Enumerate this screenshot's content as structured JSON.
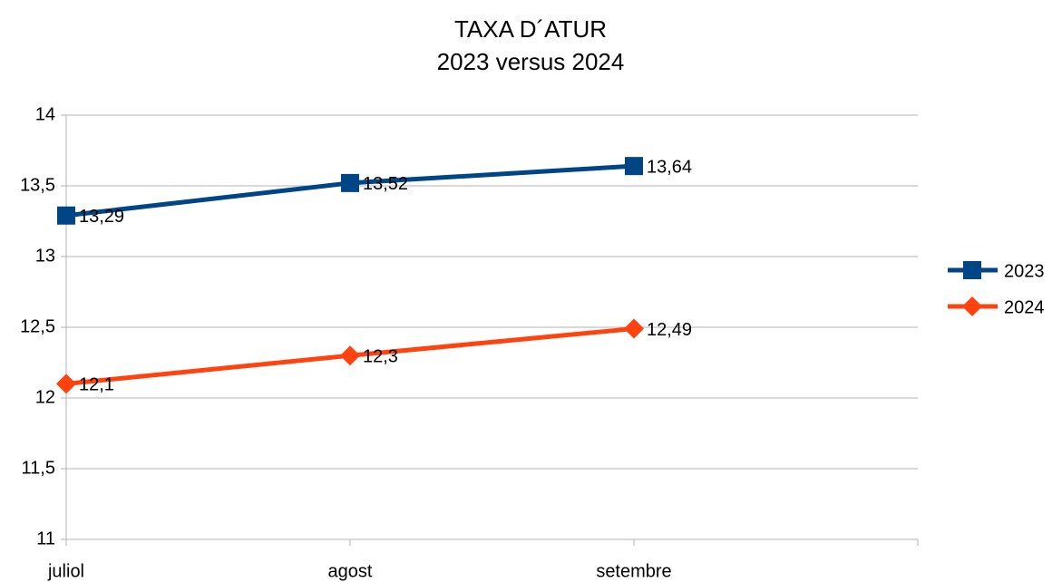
{
  "chart_data": {
    "type": "line",
    "title": "TAXA D´ATUR",
    "subtitle": "2023 versus 2024",
    "categories": [
      "juliol",
      "agost",
      "setembre"
    ],
    "series": [
      {
        "name": "2023",
        "color": "#004586",
        "marker": "square",
        "values": [
          13.29,
          13.52,
          13.64
        ],
        "value_labels": [
          "13,29",
          "13,52",
          "13,64"
        ]
      },
      {
        "name": "2024",
        "color": "#ff420e",
        "marker": "diamond",
        "values": [
          12.1,
          12.3,
          12.49
        ],
        "value_labels": [
          "12,1",
          "12,3",
          "12,49"
        ]
      }
    ],
    "ylim": [
      11,
      14
    ],
    "yticks": [
      11,
      {
        "value": 11.5,
        "label": "11,5"
      },
      12,
      {
        "value": 12.5,
        "label": "12,5"
      },
      13,
      {
        "value": 13.5,
        "label": "13,5"
      },
      14
    ],
    "grid": true,
    "legend": "right"
  }
}
